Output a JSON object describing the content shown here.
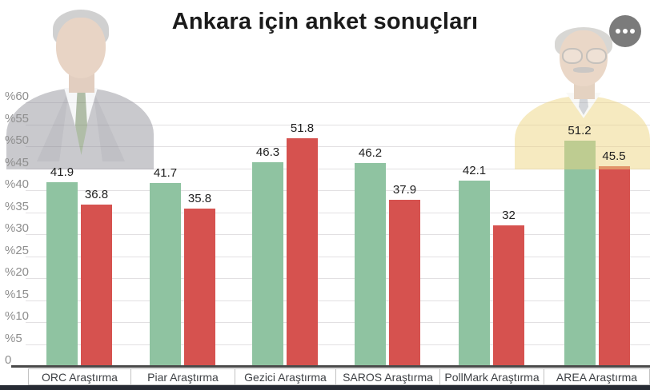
{
  "title": "Ankara için anket sonuçları",
  "menu_button": {
    "icon": "more-horizontal-icon"
  },
  "chart_data": {
    "type": "bar",
    "title": "Ankara için anket sonuçları",
    "categories": [
      "ORC Araştırma",
      "Piar Araştırma",
      "Gezici Araştırma",
      "SAROS Araştırma",
      "PollMark Araştırma",
      "AREA Araştırma"
    ],
    "series": [
      {
        "name": "green-candidate",
        "color": "#8fc3a1",
        "values": [
          41.9,
          41.7,
          46.3,
          46.2,
          42.1,
          51.2
        ]
      },
      {
        "name": "red-candidate",
        "color": "#d6524f",
        "values": [
          36.8,
          35.8,
          51.8,
          37.9,
          32,
          45.5
        ]
      }
    ],
    "xlabel": "",
    "ylabel": "",
    "y_ticks": [
      "%60",
      "%55",
      "%50",
      "%45",
      "%40",
      "%35",
      "%30",
      "%25",
      "%20",
      "%15",
      "%10",
      "%5",
      "0"
    ],
    "ylim": [
      0,
      62
    ],
    "grid": true,
    "legend_position": "none",
    "value_labels_shown": true
  },
  "decorations": {
    "left_photo": "candidate-portrait-gray-suit-green-tie",
    "right_photo": "candidate-portrait-glasses-yellow-sweater"
  },
  "colors": {
    "bar_green": "#8fc3a1",
    "bar_red": "#d6524f",
    "gridline": "#e2e0e2",
    "axis_line": "#4a4a4a",
    "tick_text": "#8e8e8e",
    "value_text": "#212121",
    "category_text": "#3e4145",
    "category_border": "#c2c2c2",
    "bottom_strip": "#272b34",
    "menu_circle": "#7b7b7b"
  }
}
